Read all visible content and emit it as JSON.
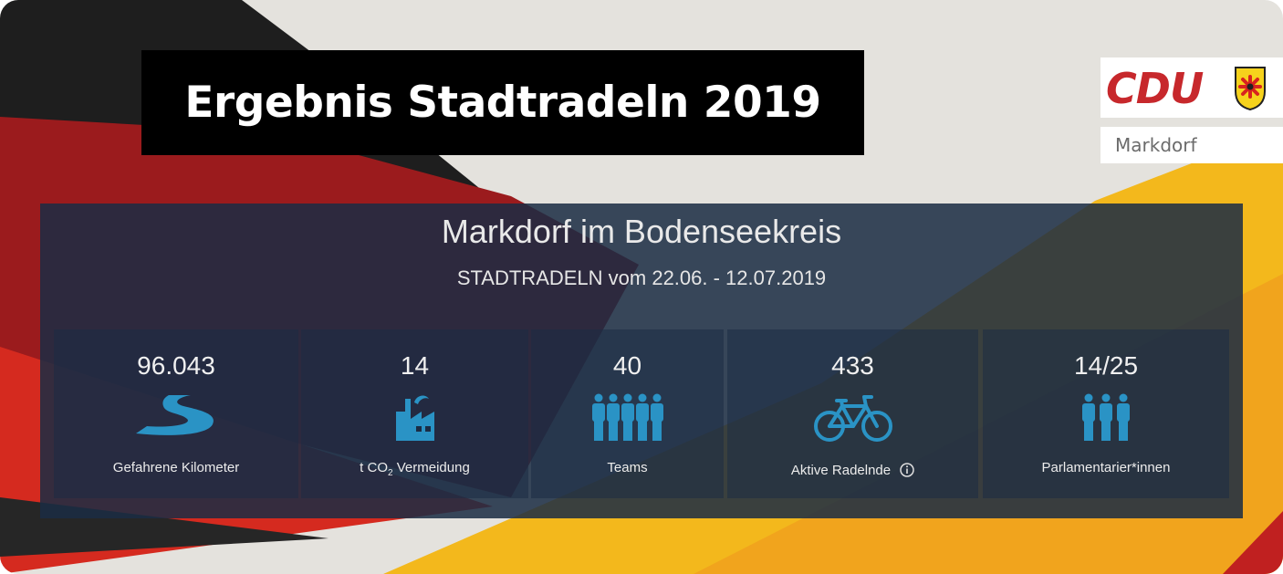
{
  "header": {
    "title": "Ergebnis Stadtradeln 2019"
  },
  "logo": {
    "brand": "CDU",
    "city": "Markdorf"
  },
  "panel": {
    "title": "Markdorf im Bodenseekreis",
    "subtitle": "STADTRADELN vom 22.06. - 12.07.2019"
  },
  "stats": [
    {
      "value": "96.043",
      "label": "Gefahrene Kilometer",
      "icon": "road-icon"
    },
    {
      "value": "14",
      "label_prefix": "t CO",
      "label_sub": "2",
      "label_suffix": " Vermeidung",
      "icon": "factory-icon"
    },
    {
      "value": "40",
      "label": "Teams",
      "icon": "team-icon"
    },
    {
      "value": "433",
      "label": "Aktive Radelnde",
      "icon": "bicycle-icon",
      "info_icon": "info-icon"
    },
    {
      "value": "14/25",
      "label": "Parlamentarier*innen",
      "icon": "people-icon"
    }
  ],
  "colors": {
    "red": "#c7282c",
    "gold": "#f7b719",
    "black": "#1e1e1e",
    "icon_blue": "#2a93c5",
    "panel": "#1b2c44"
  }
}
